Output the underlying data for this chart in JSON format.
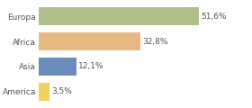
{
  "categories": [
    "Europa",
    "Africa",
    "Asia",
    "America"
  ],
  "values": [
    51.6,
    32.8,
    12.1,
    3.5
  ],
  "labels": [
    "51,6%",
    "32,8%",
    "12,1%",
    "3,5%"
  ],
  "bar_colors": [
    "#afc08a",
    "#e8b882",
    "#6b8cba",
    "#f0d060"
  ],
  "background_color": "#ffffff",
  "xlim": [
    0,
    68
  ],
  "label_fontsize": 6.5,
  "category_fontsize": 6.5
}
